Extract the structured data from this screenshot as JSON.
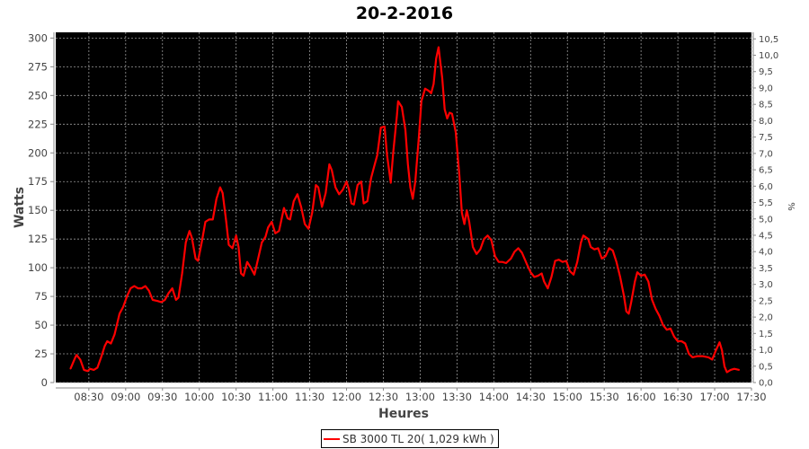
{
  "chart_data": {
    "type": "line",
    "title": "20-2-2016",
    "xlabel": "Heures",
    "ylabel": "Watts",
    "y2label": "%",
    "xlim": [
      "08:03",
      "17:30"
    ],
    "ylim": [
      0,
      305
    ],
    "y2lim": [
      0,
      10.7
    ],
    "x_ticks": [
      "08:30",
      "09:00",
      "09:30",
      "10:00",
      "10:30",
      "11:00",
      "11:30",
      "12:00",
      "12:30",
      "13:00",
      "13:30",
      "14:00",
      "14:30",
      "15:00",
      "15:30",
      "16:00",
      "16:30",
      "17:00",
      "17:30"
    ],
    "y_ticks": [
      "0",
      "25",
      "50",
      "75",
      "100",
      "125",
      "150",
      "175",
      "200",
      "225",
      "250",
      "275",
      "300"
    ],
    "y2_ticks": [
      "0,0",
      "0,5",
      "1,0",
      "1,5",
      "2,0",
      "2,5",
      "3,0",
      "3,5",
      "4,0",
      "4,5",
      "5,0",
      "5,5",
      "6,0",
      "6,5",
      "7,0",
      "7,5",
      "8,0",
      "8,5",
      "9,0",
      "9,5",
      "10,0",
      "10,5"
    ],
    "grid": true,
    "background": "#000000",
    "legend_position": "bottom",
    "series": [
      {
        "name": "SB 3000 TL 20( 1,029 kWh )",
        "color": "#ff0000",
        "x": [
          "08:15",
          "08:19",
          "08:20",
          "08:23",
          "08:26",
          "08:29",
          "08:31",
          "08:34",
          "08:37",
          "08:40",
          "08:43",
          "08:45",
          "08:48",
          "08:51",
          "08:55",
          "08:58",
          "09:01",
          "09:04",
          "09:07",
          "09:10",
          "09:13",
          "09:16",
          "09:19",
          "09:22",
          "09:26",
          "09:29",
          "09:32",
          "09:35",
          "09:38",
          "09:41",
          "09:43",
          "09:46",
          "09:49",
          "09:52",
          "09:54",
          "09:57",
          "09:59",
          "10:02",
          "10:05",
          "10:08",
          "10:11",
          "10:14",
          "10:17",
          "10:19",
          "10:22",
          "10:24",
          "10:27",
          "10:30",
          "10:32",
          "10:34",
          "10:36",
          "10:39",
          "10:42",
          "10:45",
          "10:48",
          "10:51",
          "10:54",
          "10:56",
          "10:59",
          "11:02",
          "11:05",
          "11:09",
          "11:12",
          "11:14",
          "11:17",
          "11:20",
          "11:23",
          "11:26",
          "11:29",
          "11:32",
          "11:35",
          "11:37",
          "11:40",
          "11:43",
          "11:46",
          "11:48",
          "11:51",
          "11:54",
          "11:57",
          "12:00",
          "12:02",
          "12:04",
          "12:06",
          "12:09",
          "12:12",
          "12:14",
          "12:17",
          "12:20",
          "12:23",
          "12:25",
          "12:28",
          "12:31",
          "12:33",
          "12:36",
          "12:38",
          "12:41",
          "12:42",
          "12:45",
          "12:48",
          "12:50",
          "12:52",
          "12:54",
          "12:56",
          "12:59",
          "13:01",
          "13:04",
          "13:07",
          "13:09",
          "13:11",
          "13:13",
          "13:15",
          "13:18",
          "13:20",
          "13:22",
          "13:24",
          "13:26",
          "13:29",
          "13:32",
          "13:34",
          "13:36",
          "13:38",
          "13:40",
          "13:43",
          "13:46",
          "13:49",
          "13:52",
          "13:55",
          "13:58",
          "14:01",
          "14:04",
          "14:07",
          "14:10",
          "14:14",
          "14:17",
          "14:20",
          "14:23",
          "14:27",
          "14:30",
          "14:33",
          "14:36",
          "14:39",
          "14:41",
          "14:44",
          "14:47",
          "14:50",
          "14:53",
          "14:56",
          "14:59",
          "15:02",
          "15:05",
          "15:08",
          "15:11",
          "15:13",
          "15:17",
          "15:19",
          "15:22",
          "15:25",
          "15:28",
          "15:31",
          "15:34",
          "15:37",
          "15:40",
          "15:43",
          "15:46",
          "15:48",
          "15:50",
          "15:52",
          "15:55",
          "15:57",
          "16:00",
          "16:03",
          "16:06",
          "16:09",
          "16:12",
          "16:15",
          "16:18",
          "16:21",
          "16:24",
          "16:27",
          "16:30",
          "16:33",
          "16:36",
          "16:39",
          "16:42",
          "16:46",
          "16:50",
          "16:55",
          "16:58",
          "17:01",
          "17:04",
          "17:06",
          "17:08",
          "17:10",
          "17:13",
          "17:16",
          "17:20"
        ],
        "values": [
          12,
          22,
          24,
          20,
          11,
          10,
          12,
          11,
          13,
          22,
          32,
          36,
          34,
          42,
          60,
          66,
          75,
          82,
          84,
          82,
          82,
          84,
          80,
          72,
          71,
          70,
          72,
          78,
          82,
          72,
          74,
          95,
          122,
          132,
          126,
          108,
          106,
          122,
          140,
          142,
          142,
          160,
          170,
          165,
          140,
          120,
          117,
          128,
          118,
          95,
          93,
          105,
          100,
          94,
          108,
          122,
          127,
          135,
          140,
          130,
          132,
          152,
          143,
          142,
          158,
          164,
          153,
          138,
          134,
          148,
          172,
          170,
          153,
          165,
          190,
          185,
          170,
          164,
          168,
          175,
          168,
          156,
          155,
          172,
          175,
          156,
          158,
          178,
          190,
          198,
          222,
          223,
          198,
          174,
          200,
          232,
          245,
          240,
          220,
          190,
          170,
          160,
          175,
          215,
          245,
          256,
          254,
          252,
          260,
          282,
          292,
          265,
          238,
          230,
          235,
          234,
          218,
          180,
          148,
          138,
          150,
          140,
          118,
          112,
          116,
          125,
          128,
          124,
          110,
          105,
          105,
          104,
          108,
          114,
          117,
          113,
          103,
          96,
          92,
          93,
          95,
          88,
          82,
          92,
          106,
          107,
          105,
          106,
          97,
          94,
          105,
          122,
          128,
          125,
          118,
          116,
          117,
          108,
          110,
          117,
          115,
          105,
          92,
          76,
          62,
          60,
          70,
          88,
          96,
          93,
          94,
          88,
          72,
          64,
          58,
          50,
          46,
          47,
          40,
          36,
          36,
          34,
          25,
          22,
          23,
          23,
          22,
          20,
          28,
          35,
          28,
          14,
          9,
          11,
          12,
          11
        ]
      }
    ]
  }
}
